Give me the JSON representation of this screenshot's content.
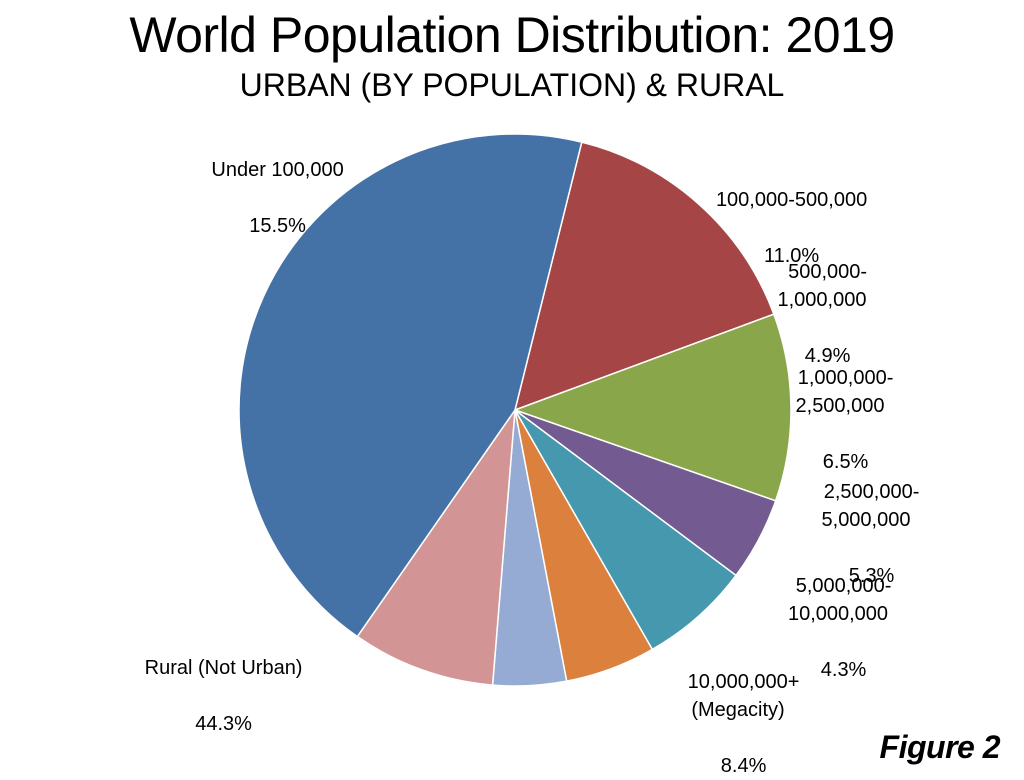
{
  "chart_data": {
    "type": "pie",
    "title": "World Population Distribution: 2019",
    "subtitle": "URBAN (BY POPULATION) & RURAL",
    "start_angle_deg": -76,
    "direction": "clockwise",
    "slices": [
      {
        "label": "Under 100,000",
        "value": 15.5,
        "value_label": "15.5%",
        "color": "#a64545"
      },
      {
        "label": "100,000-500,000",
        "value": 11.0,
        "value_label": "11.0%",
        "color": "#8aa64b"
      },
      {
        "label": "500,000-\n1,000,000",
        "value": 4.9,
        "value_label": "4.9%",
        "color": "#735a91"
      },
      {
        "label": "1,000,000-\n2,500,000",
        "value": 6.5,
        "value_label": "6.5%",
        "color": "#4598ae"
      },
      {
        "label": "2,500,000-\n5,000,000",
        "value": 5.3,
        "value_label": "5.3%",
        "color": "#db803d"
      },
      {
        "label": "5,000,000-\n10,000,000",
        "value": 4.3,
        "value_label": "4.3%",
        "color": "#95abd3"
      },
      {
        "label": "10,000,000+\n(Megacity)",
        "value": 8.4,
        "value_label": "8.4%",
        "color": "#d29494"
      },
      {
        "label": "Rural (Not Urban)",
        "value": 44.3,
        "value_label": "44.3%",
        "color": "#4572a6"
      }
    ]
  },
  "figure_label": "Figure 2"
}
